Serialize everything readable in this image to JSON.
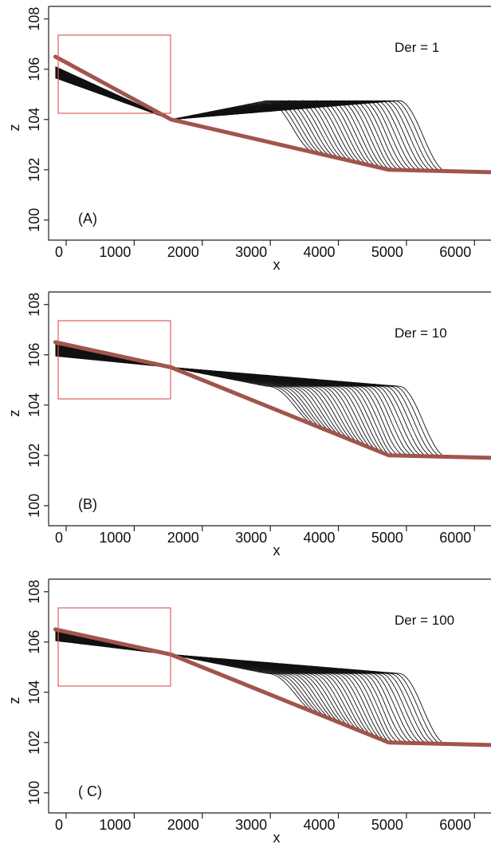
{
  "chart_data": [
    {
      "type": "line",
      "panel_label": "(A)",
      "annotation": "Der = 1",
      "xlabel": "x",
      "ylabel": "z",
      "xlim": [
        0,
        6500
      ],
      "ylim": [
        99.2,
        108.5
      ],
      "x_ticks": [
        0,
        1000,
        2000,
        3000,
        4000,
        5000,
        6000
      ],
      "y_ticks": [
        100,
        102,
        104,
        106,
        108
      ],
      "grid": false,
      "bedrock_profile": {
        "x": [
          100,
          1800,
          5000,
          6500
        ],
        "z": [
          106.5,
          104.0,
          102.0,
          101.9
        ]
      },
      "profile_family": {
        "count": 30,
        "initial_upstream_z": 106.1,
        "knick_x_start": 3200,
        "knick_x_end": 5150,
        "shelf_z_upstream": 104.85,
        "shelf_z_downstream": 104.75
      },
      "inset_box_color": "#d96060",
      "bedrock_color": "#a0554d"
    },
    {
      "type": "line",
      "panel_label": "(B)",
      "annotation": "Der = 10",
      "xlabel": "x",
      "ylabel": "z",
      "xlim": [
        0,
        6500
      ],
      "ylim": [
        99.2,
        108.5
      ],
      "x_ticks": [
        0,
        1000,
        2000,
        3000,
        4000,
        5000,
        6000
      ],
      "y_ticks": [
        100,
        102,
        104,
        106,
        108
      ],
      "grid": false,
      "bedrock_profile": {
        "x": [
          100,
          1800,
          5000,
          6500
        ],
        "z": [
          106.5,
          105.5,
          102.0,
          101.9
        ]
      },
      "profile_family": {
        "count": 30,
        "initial_upstream_z": 106.4,
        "knick_x_start": 3200,
        "knick_x_end": 5150,
        "shelf_z_upstream": 106.4,
        "shelf_z_downstream": 104.75
      },
      "inset_box_color": "#d96060",
      "bedrock_color": "#a0554d"
    },
    {
      "type": "line",
      "panel_label": "( C)",
      "annotation": "Der = 100",
      "xlabel": "x",
      "ylabel": "z",
      "xlim": [
        0,
        6500
      ],
      "ylim": [
        99.2,
        108.5
      ],
      "x_ticks": [
        0,
        1000,
        2000,
        3000,
        4000,
        5000,
        6000
      ],
      "y_ticks": [
        100,
        102,
        104,
        106,
        108
      ],
      "grid": false,
      "bedrock_profile": {
        "x": [
          100,
          1800,
          5000,
          6500
        ],
        "z": [
          106.5,
          105.5,
          102.0,
          101.9
        ]
      },
      "profile_family": {
        "count": 30,
        "initial_upstream_z": 106.5,
        "knick_x_start": 3200,
        "knick_x_end": 5150,
        "shelf_z_upstream": 106.5,
        "shelf_z_downstream": 104.75
      },
      "inset_box_color": "#d96060",
      "bedrock_color": "#a0554d"
    }
  ]
}
